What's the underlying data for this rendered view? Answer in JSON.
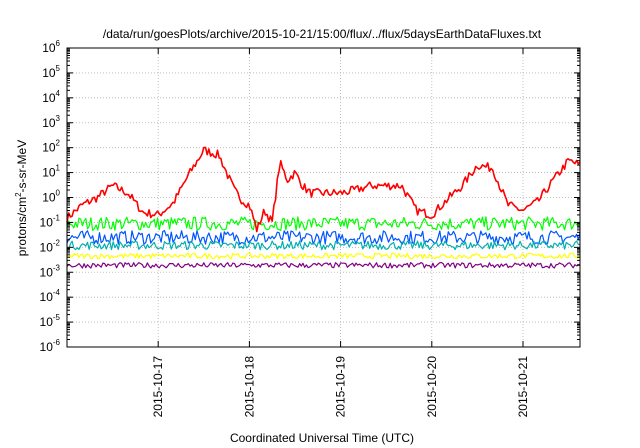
{
  "chart_data": {
    "type": "line",
    "title": "/data/run/goesPlots/archive/2015-10-21/15:00/flux/../flux/5daysEarthDataFluxes.txt",
    "xlabel": "Coordinated Universal Time (UTC)",
    "ylabel": {
      "base": "protons/cm",
      "sup": "2",
      "rest": "-s-sr-MeV"
    },
    "yscale": "log",
    "ylim_exp": [
      -6,
      6
    ],
    "y_ticks": [
      {
        "base": "10",
        "exp": "-6"
      },
      {
        "base": "10",
        "exp": "-5"
      },
      {
        "base": "10",
        "exp": "-4"
      },
      {
        "base": "10",
        "exp": "-3"
      },
      {
        "base": "10",
        "exp": "-2"
      },
      {
        "base": "10",
        "exp": "-1"
      },
      {
        "base": "10",
        "exp": "0"
      },
      {
        "base": "10",
        "exp": "1"
      },
      {
        "base": "10",
        "exp": "2"
      },
      {
        "base": "10",
        "exp": "3"
      },
      {
        "base": "10",
        "exp": "4"
      },
      {
        "base": "10",
        "exp": "5"
      },
      {
        "base": "10",
        "exp": "6"
      }
    ],
    "xlim": [
      "2015-10-16T00:00",
      "2015-10-21T15:00"
    ],
    "x_ticks": [
      "2015-10-17",
      "2015-10-18",
      "2015-10-19",
      "2015-10-20",
      "2015-10-21"
    ],
    "grid": true,
    "series": [
      {
        "color": "#ff0000",
        "x": [
          "2015-10-16T00:00",
          "2015-10-16T04:00",
          "2015-10-16T08:00",
          "2015-10-16T12:00",
          "2015-10-16T16:00",
          "2015-10-16T20:00",
          "2015-10-17T00:00",
          "2015-10-17T04:00",
          "2015-10-17T08:00",
          "2015-10-17T12:00",
          "2015-10-17T16:00",
          "2015-10-17T20:00",
          "2015-10-17T22:00",
          "2015-10-18T00:00",
          "2015-10-18T02:00",
          "2015-10-18T04:00",
          "2015-10-18T06:00",
          "2015-10-18T08:00",
          "2015-10-18T10:00",
          "2015-10-18T12:00",
          "2015-10-18T14:00",
          "2015-10-18T16:00",
          "2015-10-18T20:00",
          "2015-10-19T00:00",
          "2015-10-19T04:00",
          "2015-10-19T08:00",
          "2015-10-19T12:00",
          "2015-10-19T16:00",
          "2015-10-19T20:00",
          "2015-10-20T00:00",
          "2015-10-20T04:00",
          "2015-10-20T08:00",
          "2015-10-20T12:00",
          "2015-10-20T16:00",
          "2015-10-20T20:00",
          "2015-10-21T00:00",
          "2015-10-21T04:00",
          "2015-10-21T08:00",
          "2015-10-21T12:00",
          "2015-10-21T15:00"
        ],
        "y": [
          0.15,
          0.5,
          1.0,
          3.0,
          1.5,
          0.25,
          0.2,
          0.6,
          8,
          80,
          50,
          2,
          0.8,
          0.5,
          0.05,
          0.3,
          0.1,
          25,
          5,
          10,
          3,
          1.5,
          1.5,
          1.5,
          2,
          3,
          3,
          3,
          0.3,
          0.2,
          0.8,
          3,
          20,
          15,
          0.5,
          0.3,
          0.7,
          5,
          30,
          20
        ]
      },
      {
        "color": "#00ff00",
        "y_level": 0.09
      },
      {
        "color": "#0055ff",
        "y_level": 0.025
      },
      {
        "color": "#00b0b0",
        "y_level": 0.012
      },
      {
        "color": "#ffff00",
        "y_level": 0.0045
      },
      {
        "color": "#800080",
        "y_level": 0.0019
      }
    ]
  }
}
